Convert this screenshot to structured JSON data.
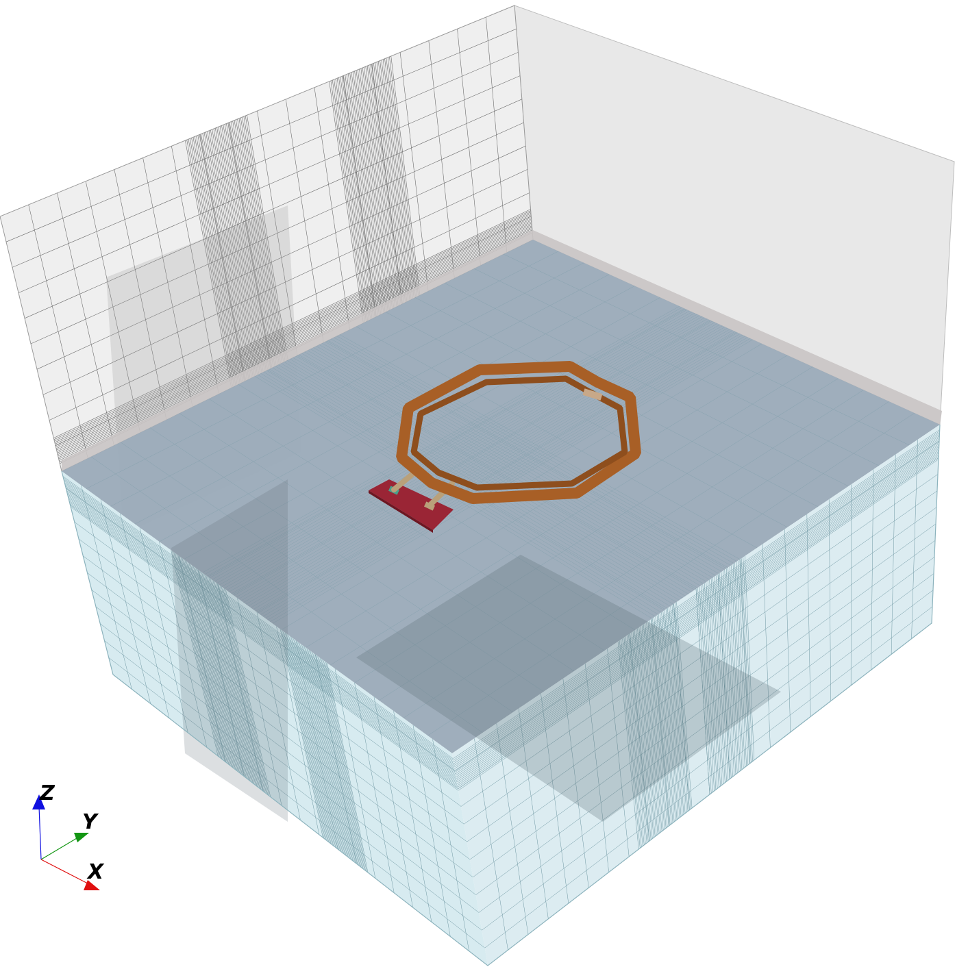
{
  "scene": {
    "background": "#ffffff",
    "colors": {
      "air_box": "#e9e9e9",
      "air_grid": "#6e6e6e",
      "substrate": "#d8ecf0",
      "substrate_grid": "#7aa3ad",
      "layer_band": "#c9c4c4",
      "coil": "#a85f26",
      "coil_dark": "#7a4118",
      "pad": "#9a2535",
      "port": "#4aa08c",
      "via": "#b9a07a"
    },
    "objects": {
      "air_box": "air-box",
      "substrate_box": "substrate-box",
      "coil": "octagonal-inductor-coil",
      "pad": "feed-pad"
    }
  },
  "triad": {
    "z_label": "Z",
    "y_label": "Y",
    "x_label": "X",
    "z_color": "#1010e0",
    "y_color": "#139613",
    "x_color": "#e01010"
  }
}
